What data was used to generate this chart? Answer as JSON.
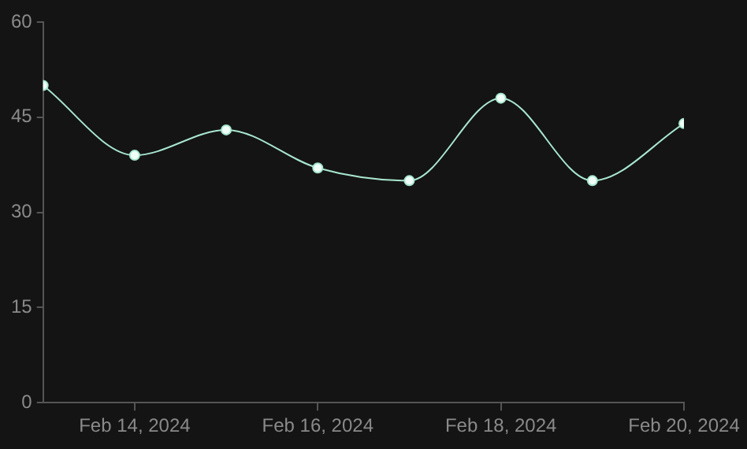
{
  "chart_data": {
    "type": "line",
    "x": [
      "2024-02-13",
      "2024-02-14",
      "2024-02-15",
      "2024-02-16",
      "2024-02-17",
      "2024-02-18",
      "2024-02-19",
      "2024-02-20"
    ],
    "series": [
      {
        "color": "#a8e6cf",
        "values": [
          50,
          39,
          43,
          37,
          35,
          48,
          35,
          44
        ]
      }
    ],
    "xlim": [
      "2024-02-13",
      "2024-02-20"
    ],
    "xticks": [
      {
        "value": "2024-02-14",
        "label": "Feb 14, 2024"
      },
      {
        "value": "2024-02-16",
        "label": "Feb 16, 2024"
      },
      {
        "value": "2024-02-18",
        "label": "Feb 18, 2024"
      },
      {
        "value": "2024-02-20",
        "label": "Feb 20, 2024"
      }
    ],
    "ylim": [
      0,
      60
    ],
    "yticks": [
      0,
      15,
      30,
      45,
      60
    ],
    "grid": false,
    "legend": false,
    "marker": "circle",
    "line_style": "solid"
  }
}
